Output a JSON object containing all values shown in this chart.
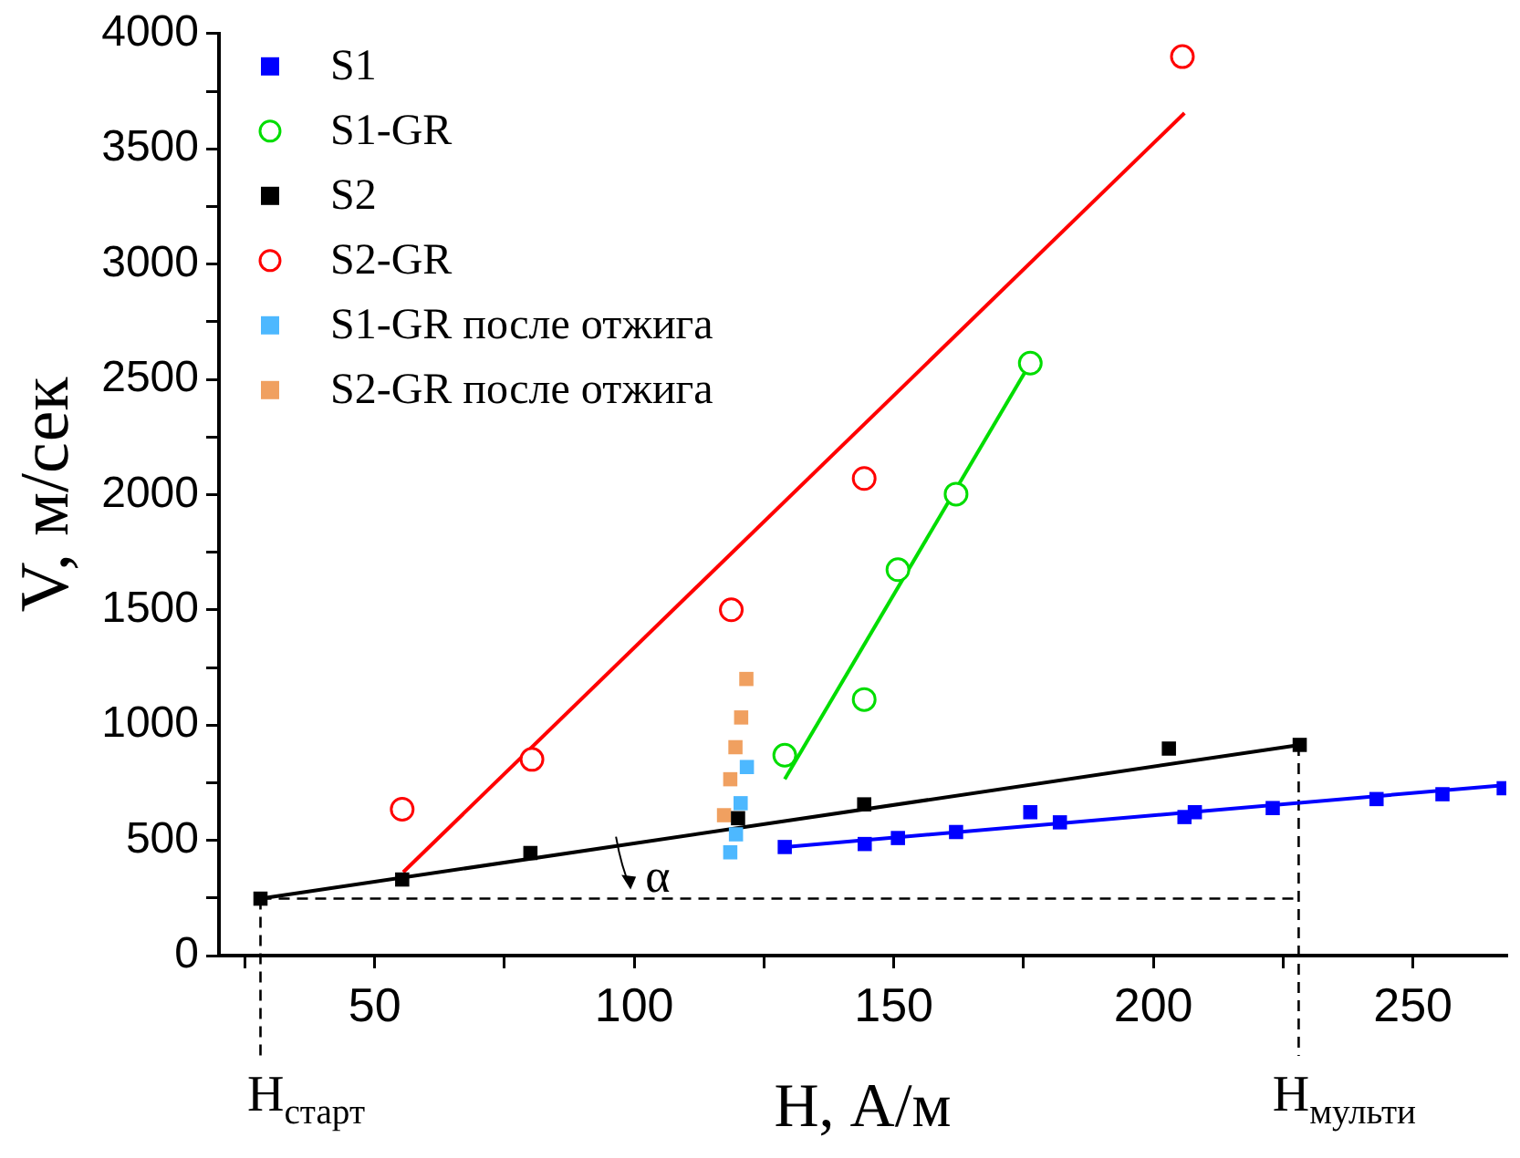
{
  "chart_data": {
    "type": "scatter",
    "xlabel": "H, А/м",
    "ylabel": "V, м/сек",
    "xlim": [
      20,
      268
    ],
    "ylim": [
      0,
      4000
    ],
    "xticks": [
      {
        "value": 25,
        "label": null
      },
      50,
      {
        "value": 75,
        "label": null
      },
      100,
      {
        "value": 125,
        "label": null
      },
      150,
      {
        "value": 175,
        "label": null
      },
      200,
      {
        "value": 225,
        "label": null
      },
      250
    ],
    "yticks": [
      0,
      {
        "value": 250,
        "label": null
      },
      500,
      {
        "value": 750,
        "label": null
      },
      1000,
      {
        "value": 1250,
        "label": null
      },
      1500,
      {
        "value": 1750,
        "label": null
      },
      2000,
      {
        "value": 2250,
        "label": null
      },
      2500,
      {
        "value": 2750,
        "label": null
      },
      3000,
      {
        "value": 3250,
        "label": null
      },
      3500,
      {
        "value": 3750,
        "label": null
      },
      4000
    ],
    "grid": false,
    "legend": "top left",
    "series": [
      {
        "name": "S1",
        "type": "scatter",
        "marker": "square",
        "color": "#0000ff",
        "x": [
          129,
          144.4,
          150.8,
          162,
          176.3,
          182,
          206,
          208,
          223,
          243,
          255.7,
          267.5
        ],
        "values": [
          471,
          484,
          510,
          536,
          622,
          578,
          601,
          622,
          640,
          679,
          700,
          726
        ]
      },
      {
        "name": "S1-GR",
        "type": "scatter",
        "marker": "circle",
        "color": "#00dd00",
        "x": [
          129,
          144.3,
          150.8,
          162,
          176.3
        ],
        "values": [
          869,
          1111,
          1674,
          2002,
          2570
        ]
      },
      {
        "name": "S2",
        "type": "scatter",
        "marker": "square",
        "color": "#000000",
        "x": [
          28,
          55.3,
          80,
          120,
          144.3,
          203,
          228.2
        ],
        "values": [
          247,
          330,
          445,
          596,
          656,
          898,
          914
        ]
      },
      {
        "name": "S2-GR",
        "type": "scatter",
        "marker": "circle",
        "color": "#ff0000",
        "x": [
          55.3,
          80.3,
          118.7,
          144.3,
          205.6
        ],
        "values": [
          635,
          851,
          1500,
          2070,
          3900
        ]
      },
      {
        "name": "S1-GR после отжига",
        "type": "scatter",
        "marker": "square",
        "color": "#4db8ff",
        "x": [
          121.7,
          120.5,
          119.6,
          118.5
        ],
        "values": [
          818,
          661,
          526,
          448
        ]
      },
      {
        "name": "S2-GR после отжига",
        "type": "scatter",
        "marker": "square",
        "color": "#f0a060",
        "x": [
          121.6,
          120.6,
          119.5,
          118.5,
          117.3
        ],
        "values": [
          1200,
          1033,
          904,
          765,
          609
        ]
      },
      {
        "type": "line",
        "marker": "none",
        "color": "#0000ff",
        "x": [
          129,
          268
        ],
        "values": [
          471,
          740
        ]
      },
      {
        "type": "line",
        "marker": "none",
        "color": "#00dd00",
        "x": [
          129,
          176.3
        ],
        "values": [
          765,
          2570
        ]
      },
      {
        "type": "line",
        "marker": "none",
        "color": "#000000",
        "x": [
          28,
          228.2
        ],
        "values": [
          247,
          914
        ]
      },
      {
        "type": "line",
        "marker": "none",
        "color": "#ff0000",
        "x": [
          55.5,
          206
        ],
        "values": [
          362,
          3655
        ]
      }
    ],
    "ref_lines": [
      {
        "axis": "x",
        "value": 28,
        "label": "H$_{старт}$",
        "line_style": "dashed",
        "color": "#000000"
      },
      {
        "axis": "x",
        "value": 228,
        "label": "H$_{мульти}$",
        "line_style": "dashed",
        "color": "#000000"
      },
      {
        "axis": "y",
        "value": 247,
        "line_style": "dashed",
        "color": "#000000"
      }
    ],
    "annotations": [
      "α"
    ]
  }
}
